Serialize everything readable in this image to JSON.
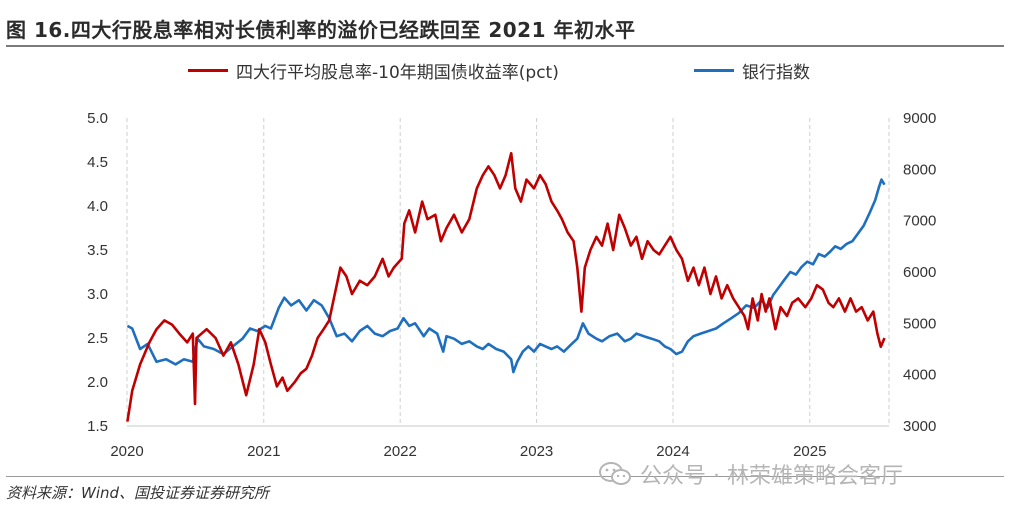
{
  "header": {
    "title": "图 16.四大行股息率相对长债利率的溢价已经跌回至 2021 年初水平"
  },
  "footer": {
    "source": "资料来源：Wind、国投证券证券研究所",
    "watermark": "公众号 · 林荣雄策略会客厅"
  },
  "chart_data": {
    "type": "line",
    "legend_position": "top-center",
    "grid": "vertical-dashed",
    "x_range": [
      "2020-01-01",
      "2025-08-01"
    ],
    "x_ticks": [
      "2020",
      "2021",
      "2022",
      "2023",
      "2024",
      "2025"
    ],
    "y_left": {
      "range": [
        1.5,
        5.0
      ],
      "ticks": [
        "1.5",
        "2.0",
        "2.5",
        "3.0",
        "3.5",
        "4.0",
        "4.5",
        "5.0"
      ]
    },
    "y_right": {
      "range": [
        3000,
        9000
      ],
      "ticks": [
        "3000",
        "4000",
        "5000",
        "6000",
        "7000",
        "8000",
        "9000"
      ]
    },
    "series": [
      {
        "name": "四大行平均股息率-10年期国债收益率(pct)",
        "axis": "left",
        "color": "#c00000",
        "points": [
          [
            "2020-01-02",
            1.55
          ],
          [
            "2020-01-15",
            1.9
          ],
          [
            "2020-02-05",
            2.2
          ],
          [
            "2020-03-01",
            2.45
          ],
          [
            "2020-03-20",
            2.6
          ],
          [
            "2020-04-10",
            2.7
          ],
          [
            "2020-05-01",
            2.65
          ],
          [
            "2020-05-20",
            2.55
          ],
          [
            "2020-06-10",
            2.45
          ],
          [
            "2020-06-25",
            2.55
          ],
          [
            "2020-07-01",
            1.75
          ],
          [
            "2020-07-05",
            2.5
          ],
          [
            "2020-08-01",
            2.6
          ],
          [
            "2020-08-25",
            2.5
          ],
          [
            "2020-09-15",
            2.3
          ],
          [
            "2020-10-05",
            2.45
          ],
          [
            "2020-10-25",
            2.2
          ],
          [
            "2020-11-15",
            1.85
          ],
          [
            "2020-12-05",
            2.2
          ],
          [
            "2020-12-20",
            2.6
          ],
          [
            "2021-01-05",
            2.45
          ],
          [
            "2021-01-20",
            2.2
          ],
          [
            "2021-02-05",
            1.95
          ],
          [
            "2021-02-20",
            2.05
          ],
          [
            "2021-03-05",
            1.9
          ],
          [
            "2021-03-25",
            2.0
          ],
          [
            "2021-04-10",
            2.1
          ],
          [
            "2021-04-25",
            2.15
          ],
          [
            "2021-05-10",
            2.3
          ],
          [
            "2021-05-25",
            2.5
          ],
          [
            "2021-06-10",
            2.6
          ],
          [
            "2021-06-25",
            2.7
          ],
          [
            "2021-07-10",
            3.0
          ],
          [
            "2021-07-25",
            3.3
          ],
          [
            "2021-08-10",
            3.2
          ],
          [
            "2021-08-25",
            3.0
          ],
          [
            "2021-09-15",
            3.15
          ],
          [
            "2021-10-05",
            3.1
          ],
          [
            "2021-10-25",
            3.2
          ],
          [
            "2021-11-15",
            3.4
          ],
          [
            "2021-12-01",
            3.2
          ],
          [
            "2021-12-15",
            3.3
          ],
          [
            "2022-01-05",
            3.4
          ],
          [
            "2022-01-12",
            3.8
          ],
          [
            "2022-01-25",
            3.95
          ],
          [
            "2022-02-10",
            3.7
          ],
          [
            "2022-03-01",
            4.05
          ],
          [
            "2022-03-15",
            3.85
          ],
          [
            "2022-04-05",
            3.9
          ],
          [
            "2022-04-20",
            3.6
          ],
          [
            "2022-05-05",
            3.75
          ],
          [
            "2022-05-25",
            3.9
          ],
          [
            "2022-06-15",
            3.7
          ],
          [
            "2022-07-05",
            3.85
          ],
          [
            "2022-07-25",
            4.2
          ],
          [
            "2022-08-10",
            4.35
          ],
          [
            "2022-08-25",
            4.45
          ],
          [
            "2022-09-10",
            4.35
          ],
          [
            "2022-09-25",
            4.2
          ],
          [
            "2022-10-10",
            4.35
          ],
          [
            "2022-10-25",
            4.6
          ],
          [
            "2022-11-05",
            4.2
          ],
          [
            "2022-11-20",
            4.05
          ],
          [
            "2022-12-05",
            4.3
          ],
          [
            "2022-12-25",
            4.2
          ],
          [
            "2023-01-10",
            4.35
          ],
          [
            "2023-01-25",
            4.25
          ],
          [
            "2023-02-10",
            4.05
          ],
          [
            "2023-02-25",
            3.95
          ],
          [
            "2023-03-10",
            3.85
          ],
          [
            "2023-03-25",
            3.7
          ],
          [
            "2023-04-10",
            3.6
          ],
          [
            "2023-04-20",
            3.3
          ],
          [
            "2023-05-01",
            2.8
          ],
          [
            "2023-05-10",
            3.3
          ],
          [
            "2023-05-25",
            3.5
          ],
          [
            "2023-06-10",
            3.65
          ],
          [
            "2023-06-25",
            3.55
          ],
          [
            "2023-07-10",
            3.8
          ],
          [
            "2023-07-25",
            3.5
          ],
          [
            "2023-08-10",
            3.9
          ],
          [
            "2023-08-25",
            3.75
          ],
          [
            "2023-09-10",
            3.55
          ],
          [
            "2023-09-25",
            3.65
          ],
          [
            "2023-10-10",
            3.4
          ],
          [
            "2023-10-25",
            3.6
          ],
          [
            "2023-11-10",
            3.5
          ],
          [
            "2023-11-25",
            3.45
          ],
          [
            "2023-12-10",
            3.55
          ],
          [
            "2023-12-25",
            3.65
          ],
          [
            "2024-01-10",
            3.5
          ],
          [
            "2024-01-25",
            3.4
          ],
          [
            "2024-02-10",
            3.15
          ],
          [
            "2024-02-25",
            3.3
          ],
          [
            "2024-03-10",
            3.1
          ],
          [
            "2024-03-25",
            3.3
          ],
          [
            "2024-04-10",
            3.0
          ],
          [
            "2024-04-25",
            3.2
          ],
          [
            "2024-05-10",
            2.95
          ],
          [
            "2024-05-25",
            3.1
          ],
          [
            "2024-06-10",
            2.95
          ],
          [
            "2024-06-25",
            2.85
          ],
          [
            "2024-07-10",
            2.75
          ],
          [
            "2024-07-20",
            2.6
          ],
          [
            "2024-08-01",
            2.95
          ],
          [
            "2024-08-15",
            2.7
          ],
          [
            "2024-08-25",
            3.0
          ],
          [
            "2024-09-05",
            2.8
          ],
          [
            "2024-09-15",
            2.95
          ],
          [
            "2024-10-01",
            2.6
          ],
          [
            "2024-10-15",
            2.85
          ],
          [
            "2024-11-01",
            2.75
          ],
          [
            "2024-11-15",
            2.9
          ],
          [
            "2024-12-01",
            2.95
          ],
          [
            "2024-12-20",
            2.85
          ],
          [
            "2025-01-05",
            2.95
          ],
          [
            "2025-01-20",
            3.1
          ],
          [
            "2025-02-05",
            3.05
          ],
          [
            "2025-02-20",
            2.9
          ],
          [
            "2025-03-05",
            2.85
          ],
          [
            "2025-03-20",
            2.95
          ],
          [
            "2025-04-05",
            2.8
          ],
          [
            "2025-04-20",
            2.95
          ],
          [
            "2025-05-05",
            2.8
          ],
          [
            "2025-05-20",
            2.85
          ],
          [
            "2025-06-05",
            2.7
          ],
          [
            "2025-06-20",
            2.8
          ],
          [
            "2025-07-01",
            2.55
          ],
          [
            "2025-07-10",
            2.4
          ],
          [
            "2025-07-20",
            2.5
          ]
        ]
      },
      {
        "name": "银行指数",
        "axis": "right",
        "color": "#1f6fbf",
        "points": [
          [
            "2020-01-02",
            4950
          ],
          [
            "2020-01-15",
            4900
          ],
          [
            "2020-02-05",
            4500
          ],
          [
            "2020-02-25",
            4600
          ],
          [
            "2020-03-20",
            4250
          ],
          [
            "2020-04-15",
            4300
          ],
          [
            "2020-05-10",
            4200
          ],
          [
            "2020-06-01",
            4300
          ],
          [
            "2020-06-25",
            4250
          ],
          [
            "2020-07-08",
            4700
          ],
          [
            "2020-07-25",
            4550
          ],
          [
            "2020-08-20",
            4500
          ],
          [
            "2020-09-15",
            4400
          ],
          [
            "2020-10-10",
            4550
          ],
          [
            "2020-11-05",
            4700
          ],
          [
            "2020-11-25",
            4900
          ],
          [
            "2020-12-15",
            4850
          ],
          [
            "2021-01-05",
            4950
          ],
          [
            "2021-01-20",
            4900
          ],
          [
            "2021-02-10",
            5300
          ],
          [
            "2021-02-25",
            5500
          ],
          [
            "2021-03-15",
            5350
          ],
          [
            "2021-04-05",
            5450
          ],
          [
            "2021-04-25",
            5250
          ],
          [
            "2021-05-15",
            5450
          ],
          [
            "2021-06-05",
            5350
          ],
          [
            "2021-06-25",
            5100
          ],
          [
            "2021-07-15",
            4750
          ],
          [
            "2021-08-05",
            4800
          ],
          [
            "2021-08-25",
            4650
          ],
          [
            "2021-09-15",
            4850
          ],
          [
            "2021-10-05",
            4950
          ],
          [
            "2021-10-25",
            4800
          ],
          [
            "2021-11-15",
            4750
          ],
          [
            "2021-12-05",
            4850
          ],
          [
            "2021-12-25",
            4900
          ],
          [
            "2022-01-10",
            5100
          ],
          [
            "2022-01-25",
            4950
          ],
          [
            "2022-02-10",
            5000
          ],
          [
            "2022-03-05",
            4750
          ],
          [
            "2022-03-20",
            4900
          ],
          [
            "2022-04-10",
            4800
          ],
          [
            "2022-04-26",
            4450
          ],
          [
            "2022-05-05",
            4750
          ],
          [
            "2022-05-25",
            4700
          ],
          [
            "2022-06-15",
            4600
          ],
          [
            "2022-07-05",
            4650
          ],
          [
            "2022-07-25",
            4550
          ],
          [
            "2022-08-10",
            4500
          ],
          [
            "2022-08-25",
            4600
          ],
          [
            "2022-09-15",
            4500
          ],
          [
            "2022-10-05",
            4450
          ],
          [
            "2022-10-25",
            4300
          ],
          [
            "2022-10-31",
            4050
          ],
          [
            "2022-11-10",
            4250
          ],
          [
            "2022-11-25",
            4450
          ],
          [
            "2022-12-10",
            4550
          ],
          [
            "2022-12-25",
            4450
          ],
          [
            "2023-01-10",
            4600
          ],
          [
            "2023-01-25",
            4550
          ],
          [
            "2023-02-10",
            4500
          ],
          [
            "2023-02-25",
            4550
          ],
          [
            "2023-03-15",
            4450
          ],
          [
            "2023-04-05",
            4600
          ],
          [
            "2023-04-20",
            4700
          ],
          [
            "2023-05-05",
            5000
          ],
          [
            "2023-05-20",
            4800
          ],
          [
            "2023-06-10",
            4700
          ],
          [
            "2023-06-25",
            4650
          ],
          [
            "2023-07-15",
            4750
          ],
          [
            "2023-08-05",
            4800
          ],
          [
            "2023-08-25",
            4650
          ],
          [
            "2023-09-10",
            4700
          ],
          [
            "2023-09-25",
            4800
          ],
          [
            "2023-10-15",
            4750
          ],
          [
            "2023-11-05",
            4700
          ],
          [
            "2023-11-25",
            4650
          ],
          [
            "2023-12-10",
            4550
          ],
          [
            "2023-12-25",
            4500
          ],
          [
            "2024-01-10",
            4400
          ],
          [
            "2024-01-25",
            4450
          ],
          [
            "2024-02-10",
            4650
          ],
          [
            "2024-02-25",
            4750
          ],
          [
            "2024-03-15",
            4800
          ],
          [
            "2024-04-05",
            4850
          ],
          [
            "2024-04-25",
            4900
          ],
          [
            "2024-05-15",
            5000
          ],
          [
            "2024-06-05",
            5100
          ],
          [
            "2024-06-25",
            5200
          ],
          [
            "2024-07-15",
            5350
          ],
          [
            "2024-08-05",
            5300
          ],
          [
            "2024-08-25",
            5450
          ],
          [
            "2024-09-10",
            5300
          ],
          [
            "2024-09-25",
            5550
          ],
          [
            "2024-10-10",
            5700
          ],
          [
            "2024-10-25",
            5850
          ],
          [
            "2024-11-10",
            6000
          ],
          [
            "2024-11-25",
            5950
          ],
          [
            "2024-12-10",
            6100
          ],
          [
            "2024-12-25",
            6200
          ],
          [
            "2025-01-10",
            6150
          ],
          [
            "2025-01-25",
            6350
          ],
          [
            "2025-02-10",
            6300
          ],
          [
            "2025-02-25",
            6400
          ],
          [
            "2025-03-10",
            6500
          ],
          [
            "2025-03-25",
            6450
          ],
          [
            "2025-04-10",
            6550
          ],
          [
            "2025-04-25",
            6600
          ],
          [
            "2025-05-10",
            6750
          ],
          [
            "2025-05-25",
            6900
          ],
          [
            "2025-06-10",
            7150
          ],
          [
            "2025-06-25",
            7400
          ],
          [
            "2025-07-05",
            7650
          ],
          [
            "2025-07-12",
            7800
          ],
          [
            "2025-07-20",
            7700
          ]
        ]
      }
    ]
  }
}
